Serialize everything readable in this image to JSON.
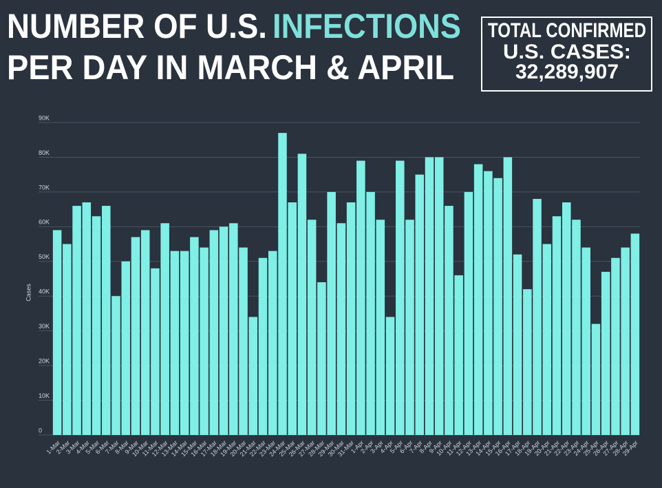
{
  "chart_data": {
    "type": "bar",
    "title": [
      "NUMBER OF U.S.",
      "INFECTIONS",
      "PER DAY IN MARCH & APRIL"
    ],
    "total_label": [
      "TOTAL CONFIRMED",
      "U.S. CASES:"
    ],
    "total_value": "32,289,907",
    "y_label": "Cases",
    "categories": [
      "1-Mar",
      "2-Mar",
      "3-Mar",
      "4-Mar",
      "5-Mar",
      "6-Mar",
      "7-Mar",
      "8-Mar",
      "9-Mar",
      "10-Mar",
      "11-Mar",
      "12-Mar",
      "13-Mar",
      "14-Mar",
      "15-Mar",
      "16-Mar",
      "17-Mar",
      "18-Mar",
      "19-Mar",
      "20-Mar",
      "21-Mar",
      "22-Mar",
      "23-Mar",
      "24-Mar",
      "25-Mar",
      "26-Mar",
      "27-Mar",
      "28-Mar",
      "29-Mar",
      "30-Mar",
      "31-Mar",
      "1-Apr",
      "2-Apr",
      "3-Apr",
      "4-Apr",
      "5-Apr",
      "6-Apr",
      "7-Apr",
      "8-Apr",
      "9-Apr",
      "10-Apr",
      "11-Apr",
      "12-Apr",
      "13-Apr",
      "14-Apr",
      "15-Apr",
      "16-Apr",
      "17-Apr",
      "18-Apr",
      "19-Apr",
      "20-Apr",
      "21-Apr",
      "22-Apr",
      "23-Apr",
      "24-Apr",
      "25-Apr",
      "26-Apr",
      "27-Apr",
      "28-Apr",
      "29-Apr"
    ],
    "values": [
      59000,
      55000,
      66000,
      67000,
      63000,
      66000,
      40000,
      50000,
      57000,
      59000,
      48000,
      61000,
      53000,
      53000,
      57000,
      54000,
      59000,
      60000,
      61000,
      54000,
      34000,
      51000,
      53000,
      87000,
      67000,
      81000,
      62000,
      44000,
      70000,
      61000,
      67000,
      79000,
      70000,
      62000,
      34000,
      79000,
      62000,
      75000,
      80000,
      80000,
      66000,
      46000,
      70000,
      78000,
      76000,
      74000,
      80000,
      52000,
      42000,
      68000,
      55000,
      63000,
      67000,
      62000,
      54000,
      32000,
      47000,
      51000,
      54000,
      58000
    ],
    "color": "#80efe6",
    "highlight_color": "#7fe0dc",
    "ylim": [
      0,
      90000
    ],
    "yticks": [
      0,
      {
        "value": 10000,
        "label": "10K"
      },
      {
        "value": 20000,
        "label": "20K"
      },
      {
        "value": 30000,
        "label": "30K"
      },
      {
        "value": 40000,
        "label": "40K"
      },
      {
        "value": 50000,
        "label": "50K"
      },
      {
        "value": 60000,
        "label": "60K"
      },
      {
        "value": 70000,
        "label": "70K"
      },
      {
        "value": 80000,
        "label": "80K"
      },
      {
        "value": 90000,
        "label": "90K"
      }
    ],
    "grid": true
  }
}
